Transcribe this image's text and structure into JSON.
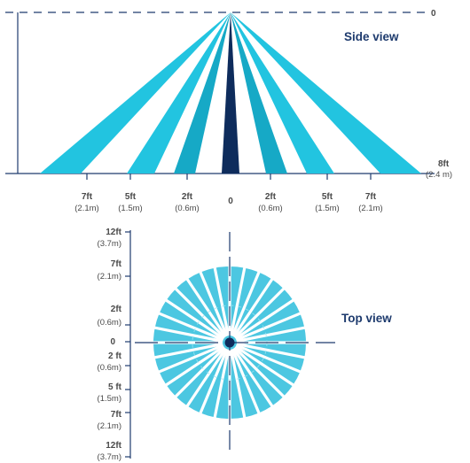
{
  "colors": {
    "beam_dark": "#16a9c6",
    "beam_light": "#22c4e0",
    "beam_center": "#0e2c5c",
    "top_beam": "#4cc7e1",
    "top_divider": "#9ae2f1",
    "axis_line": "#1e3b6e",
    "label_text": "#4a4a4a",
    "title_text": "#1e3b6e"
  },
  "side_view": {
    "title": "Side view",
    "top_marker": "0",
    "height_label": {
      "imperial": "8ft",
      "metric": "(2.4 m)"
    },
    "floor_labels": [
      {
        "imperial": "7ft",
        "metric": "(2.1m)"
      },
      {
        "imperial": "5ft",
        "metric": "(1.5m)"
      },
      {
        "imperial": "2ft",
        "metric": "(0.6m)"
      },
      {
        "imperial": "0",
        "metric": ""
      },
      {
        "imperial": "2ft",
        "metric": "(0.6m)"
      },
      {
        "imperial": "5ft",
        "metric": "(1.5m)"
      },
      {
        "imperial": "7ft",
        "metric": "(2.1m)"
      }
    ]
  },
  "top_view": {
    "title": "Top view",
    "axis_labels": [
      {
        "imperial": "12ft",
        "metric": "(3.7m)"
      },
      {
        "imperial": "7ft",
        "metric": "(2.1m)"
      },
      {
        "imperial": "2ft",
        "metric": "(0.6m)"
      },
      {
        "imperial": "0",
        "metric": ""
      },
      {
        "imperial": "2 ft",
        "metric": "(0.6m)"
      },
      {
        "imperial": "5 ft",
        "metric": "(1.5m)"
      },
      {
        "imperial": "7ft",
        "metric": "(2.1m)"
      },
      {
        "imperial": "12ft",
        "metric": "(3.7m)"
      }
    ],
    "beam_count": 32
  }
}
